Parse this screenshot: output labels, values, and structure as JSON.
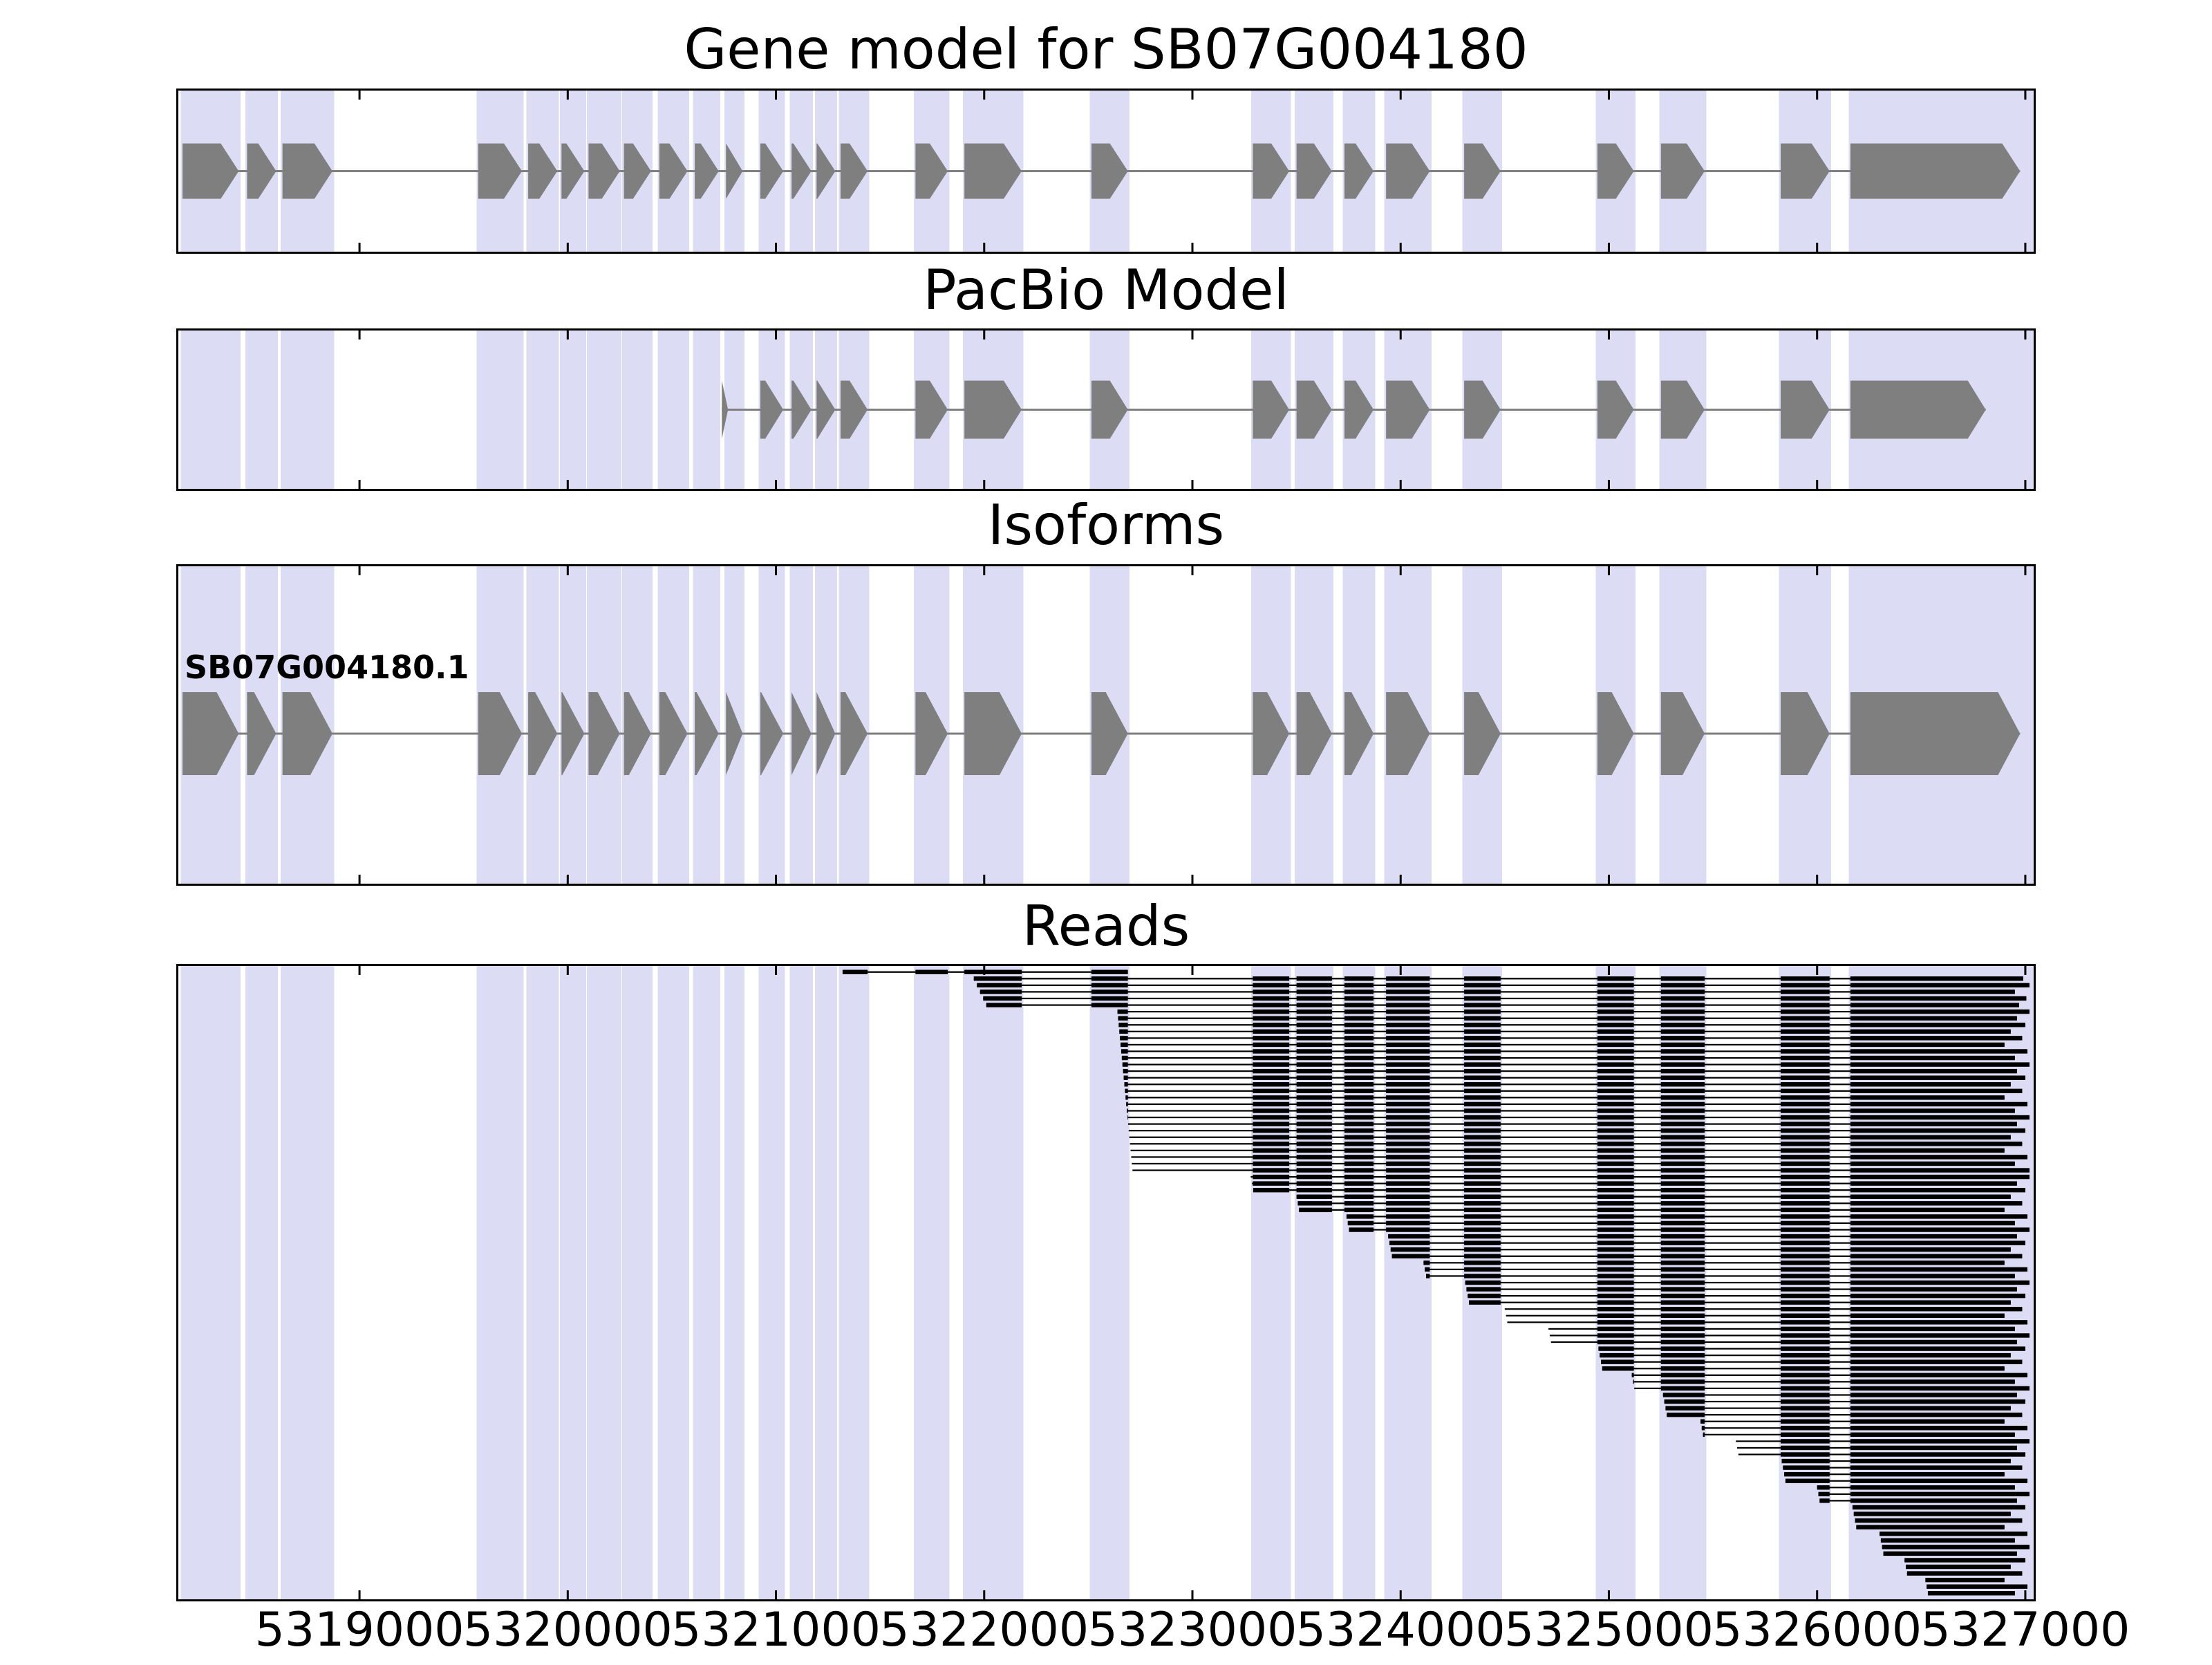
{
  "titles": {
    "gene_model": "Gene model for SB07G004180",
    "pacbio": "PacBio Model",
    "isoforms": "Isoforms",
    "reads": "Reads"
  },
  "isoform_label": "SB07G004180.1",
  "chart_data": {
    "type": "gene-model-tracks",
    "title": "Gene model for SB07G004180",
    "panels": [
      "Gene model for SB07G004180",
      "PacBio Model",
      "Isoforms",
      "Reads"
    ],
    "x_range": [
      5318120,
      5327050
    ],
    "x_ticks": [
      5319000,
      5320000,
      5321000,
      5322000,
      5323000,
      5324000,
      5325000,
      5326000,
      5327000
    ],
    "colors": {
      "highlight": "#dcdcf4",
      "exon": "#7f7f7f",
      "intron_line": "#7f7f7f",
      "read": "#000000",
      "border": "#000000"
    },
    "gene_exons": [
      [
        5318150,
        5318420
      ],
      [
        5318460,
        5318600
      ],
      [
        5318630,
        5318870
      ],
      [
        5319570,
        5319780
      ],
      [
        5319810,
        5319950
      ],
      [
        5319970,
        5320080
      ],
      [
        5320100,
        5320250
      ],
      [
        5320270,
        5320400
      ],
      [
        5320440,
        5320575
      ],
      [
        5320610,
        5320725
      ],
      [
        5320760,
        5320840
      ],
      [
        5320925,
        5321035
      ],
      [
        5321075,
        5321170
      ],
      [
        5321195,
        5321285
      ],
      [
        5321310,
        5321440
      ],
      [
        5321670,
        5321825
      ],
      [
        5321905,
        5322180
      ],
      [
        5322515,
        5322690
      ],
      [
        5323290,
        5323465
      ],
      [
        5323500,
        5323670
      ],
      [
        5323730,
        5323870
      ],
      [
        5323930,
        5324140
      ],
      [
        5324305,
        5324480
      ],
      [
        5324945,
        5325120
      ],
      [
        5325250,
        5325460
      ],
      [
        5325825,
        5326060
      ],
      [
        5326160,
        5326975
      ]
    ],
    "pacbio_exons": [
      [
        5320740,
        5320770
      ],
      [
        5320925,
        5321035
      ],
      [
        5321075,
        5321170
      ],
      [
        5321195,
        5321285
      ],
      [
        5321310,
        5321440
      ],
      [
        5321670,
        5321825
      ],
      [
        5321905,
        5322180
      ],
      [
        5322515,
        5322690
      ],
      [
        5323290,
        5323465
      ],
      [
        5323500,
        5323670
      ],
      [
        5323730,
        5323870
      ],
      [
        5323930,
        5324140
      ],
      [
        5324305,
        5324480
      ],
      [
        5324945,
        5325120
      ],
      [
        5325250,
        5325460
      ],
      [
        5325825,
        5326060
      ],
      [
        5326160,
        5326810
      ]
    ],
    "isoform_exons": [
      [
        5318150,
        5318420
      ],
      [
        5318460,
        5318600
      ],
      [
        5318630,
        5318870
      ],
      [
        5319570,
        5319780
      ],
      [
        5319810,
        5319950
      ],
      [
        5319970,
        5320080
      ],
      [
        5320100,
        5320250
      ],
      [
        5320270,
        5320400
      ],
      [
        5320440,
        5320575
      ],
      [
        5320610,
        5320725
      ],
      [
        5320760,
        5320840
      ],
      [
        5320925,
        5321035
      ],
      [
        5321075,
        5321170
      ],
      [
        5321195,
        5321285
      ],
      [
        5321310,
        5321440
      ],
      [
        5321670,
        5321825
      ],
      [
        5321905,
        5322180
      ],
      [
        5322515,
        5322690
      ],
      [
        5323290,
        5323465
      ],
      [
        5323500,
        5323670
      ],
      [
        5323730,
        5323870
      ],
      [
        5323930,
        5324140
      ],
      [
        5324305,
        5324480
      ],
      [
        5324945,
        5325120
      ],
      [
        5325250,
        5325460
      ],
      [
        5325825,
        5326060
      ],
      [
        5326160,
        5326975
      ]
    ],
    "reads": [
      [
        5321320,
        5322690
      ],
      [
        5321950,
        5326990
      ],
      [
        5321965,
        5327020
      ],
      [
        5321980,
        5326950
      ],
      [
        5321995,
        5327005
      ],
      [
        5322010,
        5326970
      ],
      [
        5322640,
        5327020
      ],
      [
        5322643,
        5326960
      ],
      [
        5322646,
        5327000
      ],
      [
        5322649,
        5326930
      ],
      [
        5322652,
        5326985
      ],
      [
        5322655,
        5326900
      ],
      [
        5322658,
        5327010
      ],
      [
        5322661,
        5326950
      ],
      [
        5322664,
        5327020
      ],
      [
        5322667,
        5326960
      ],
      [
        5322670,
        5327000
      ],
      [
        5322673,
        5326930
      ],
      [
        5322676,
        5326985
      ],
      [
        5322679,
        5326900
      ],
      [
        5322682,
        5327010
      ],
      [
        5322685,
        5326950
      ],
      [
        5322688,
        5327020
      ],
      [
        5322691,
        5326960
      ],
      [
        5322694,
        5327000
      ],
      [
        5322697,
        5326930
      ],
      [
        5322700,
        5326985
      ],
      [
        5322703,
        5326900
      ],
      [
        5322706,
        5327010
      ],
      [
        5322709,
        5326950
      ],
      [
        5322712,
        5327020
      ],
      [
        5323280,
        5327020
      ],
      [
        5323286,
        5326960
      ],
      [
        5323292,
        5327000
      ],
      [
        5323500,
        5326930
      ],
      [
        5323506,
        5326985
      ],
      [
        5323512,
        5326900
      ],
      [
        5323740,
        5327010
      ],
      [
        5323746,
        5326950
      ],
      [
        5323752,
        5327020
      ],
      [
        5323940,
        5326960
      ],
      [
        5323946,
        5327000
      ],
      [
        5323952,
        5326930
      ],
      [
        5323958,
        5326985
      ],
      [
        5324110,
        5326900
      ],
      [
        5324116,
        5327010
      ],
      [
        5324122,
        5326950
      ],
      [
        5324310,
        5327020
      ],
      [
        5324316,
        5326960
      ],
      [
        5324322,
        5327000
      ],
      [
        5324328,
        5326930
      ],
      [
        5324500,
        5326985
      ],
      [
        5324506,
        5326900
      ],
      [
        5324512,
        5327010
      ],
      [
        5324710,
        5326950
      ],
      [
        5324716,
        5327020
      ],
      [
        5324722,
        5326960
      ],
      [
        5324950,
        5327000
      ],
      [
        5324956,
        5326930
      ],
      [
        5324962,
        5326985
      ],
      [
        5324968,
        5326900
      ],
      [
        5325110,
        5327010
      ],
      [
        5325116,
        5326950
      ],
      [
        5325122,
        5327020
      ],
      [
        5325260,
        5326960
      ],
      [
        5325266,
        5327000
      ],
      [
        5325272,
        5326930
      ],
      [
        5325278,
        5326985
      ],
      [
        5325440,
        5326900
      ],
      [
        5325446,
        5327010
      ],
      [
        5325452,
        5326950
      ],
      [
        5325610,
        5327020
      ],
      [
        5325616,
        5326960
      ],
      [
        5325622,
        5327000
      ],
      [
        5325830,
        5326930
      ],
      [
        5325836,
        5326985
      ],
      [
        5325842,
        5326900
      ],
      [
        5325848,
        5327010
      ],
      [
        5326000,
        5326950
      ],
      [
        5326006,
        5327020
      ],
      [
        5326012,
        5326960
      ],
      [
        5326170,
        5327000
      ],
      [
        5326176,
        5326930
      ],
      [
        5326182,
        5326985
      ],
      [
        5326188,
        5326900
      ],
      [
        5326300,
        5327010
      ],
      [
        5326306,
        5326950
      ],
      [
        5326312,
        5327020
      ],
      [
        5326318,
        5326960
      ],
      [
        5326420,
        5327000
      ],
      [
        5326426,
        5326930
      ],
      [
        5326432,
        5326985
      ],
      [
        5326520,
        5326900
      ],
      [
        5326526,
        5327010
      ],
      [
        5326532,
        5326950
      ]
    ]
  }
}
